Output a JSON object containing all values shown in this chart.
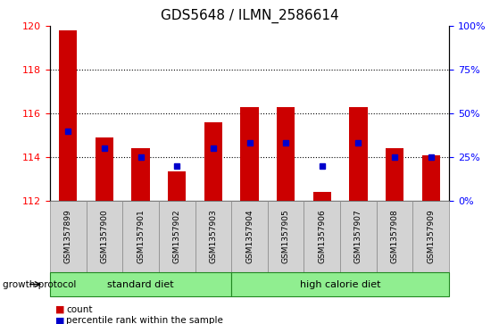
{
  "title": "GDS5648 / ILMN_2586614",
  "samples": [
    "GSM1357899",
    "GSM1357900",
    "GSM1357901",
    "GSM1357902",
    "GSM1357903",
    "GSM1357904",
    "GSM1357905",
    "GSM1357906",
    "GSM1357907",
    "GSM1357908",
    "GSM1357909"
  ],
  "count_values": [
    119.8,
    114.9,
    114.4,
    113.35,
    115.6,
    116.3,
    116.3,
    112.4,
    116.3,
    114.4,
    114.1
  ],
  "percentile_values": [
    40,
    30,
    25,
    20,
    30,
    33,
    33,
    20,
    33,
    25,
    25
  ],
  "ylim_left": [
    112,
    120
  ],
  "ylim_right": [
    0,
    100
  ],
  "yticks_left": [
    112,
    114,
    116,
    118,
    120
  ],
  "yticks_right": [
    0,
    25,
    50,
    75,
    100
  ],
  "ytick_labels_right": [
    "0%",
    "25%",
    "50%",
    "75%",
    "100%"
  ],
  "bar_color": "#cc0000",
  "dot_color": "#0000cc",
  "bar_bottom": 112,
  "standard_diet_indices": [
    0,
    1,
    2,
    3,
    4
  ],
  "high_calorie_diet_indices": [
    5,
    6,
    7,
    8,
    9,
    10
  ],
  "group_label_standard": "standard diet",
  "group_label_high": "high calorie diet",
  "group_box_color": "#90ee90",
  "sample_box_color": "#d3d3d3",
  "legend_count_label": "count",
  "legend_percentile_label": "percentile rank within the sample",
  "growth_protocol_label": "growth protocol",
  "title_fontsize": 11,
  "tick_fontsize": 8,
  "label_fontsize": 8
}
